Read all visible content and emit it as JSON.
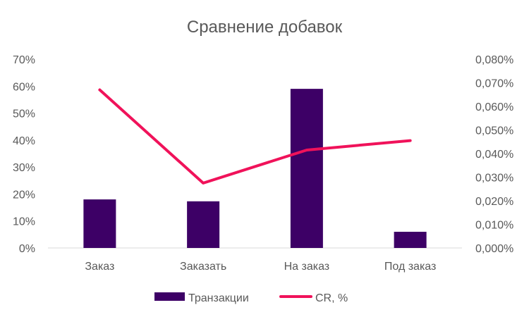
{
  "chart_data": {
    "type": "bar",
    "title": "Сравнение добавок",
    "categories": [
      "Заказ",
      "Заказать",
      "На заказ",
      "Под заказ"
    ],
    "series": [
      {
        "name": "Транзакции",
        "type": "bar",
        "axis": "left",
        "values": [
          18,
          17.3,
          59,
          6
        ],
        "color": "#3d0066"
      },
      {
        "name": "CR, %",
        "type": "line",
        "axis": "right",
        "values": [
          0.067,
          0.0275,
          0.0415,
          0.0455
        ],
        "color": "#f0125a"
      }
    ],
    "y_left": {
      "ylim": [
        0,
        70
      ],
      "ticks": [
        "0%",
        "10%",
        "20%",
        "30%",
        "40%",
        "50%",
        "60%",
        "70%"
      ]
    },
    "y_right": {
      "ylim": [
        0,
        0.08
      ],
      "ticks": [
        "0,000%",
        "0,010%",
        "0,020%",
        "0,030%",
        "0,040%",
        "0,050%",
        "0,060%",
        "0,070%",
        "0,080%"
      ]
    },
    "grid": false,
    "legend": "bottom"
  }
}
